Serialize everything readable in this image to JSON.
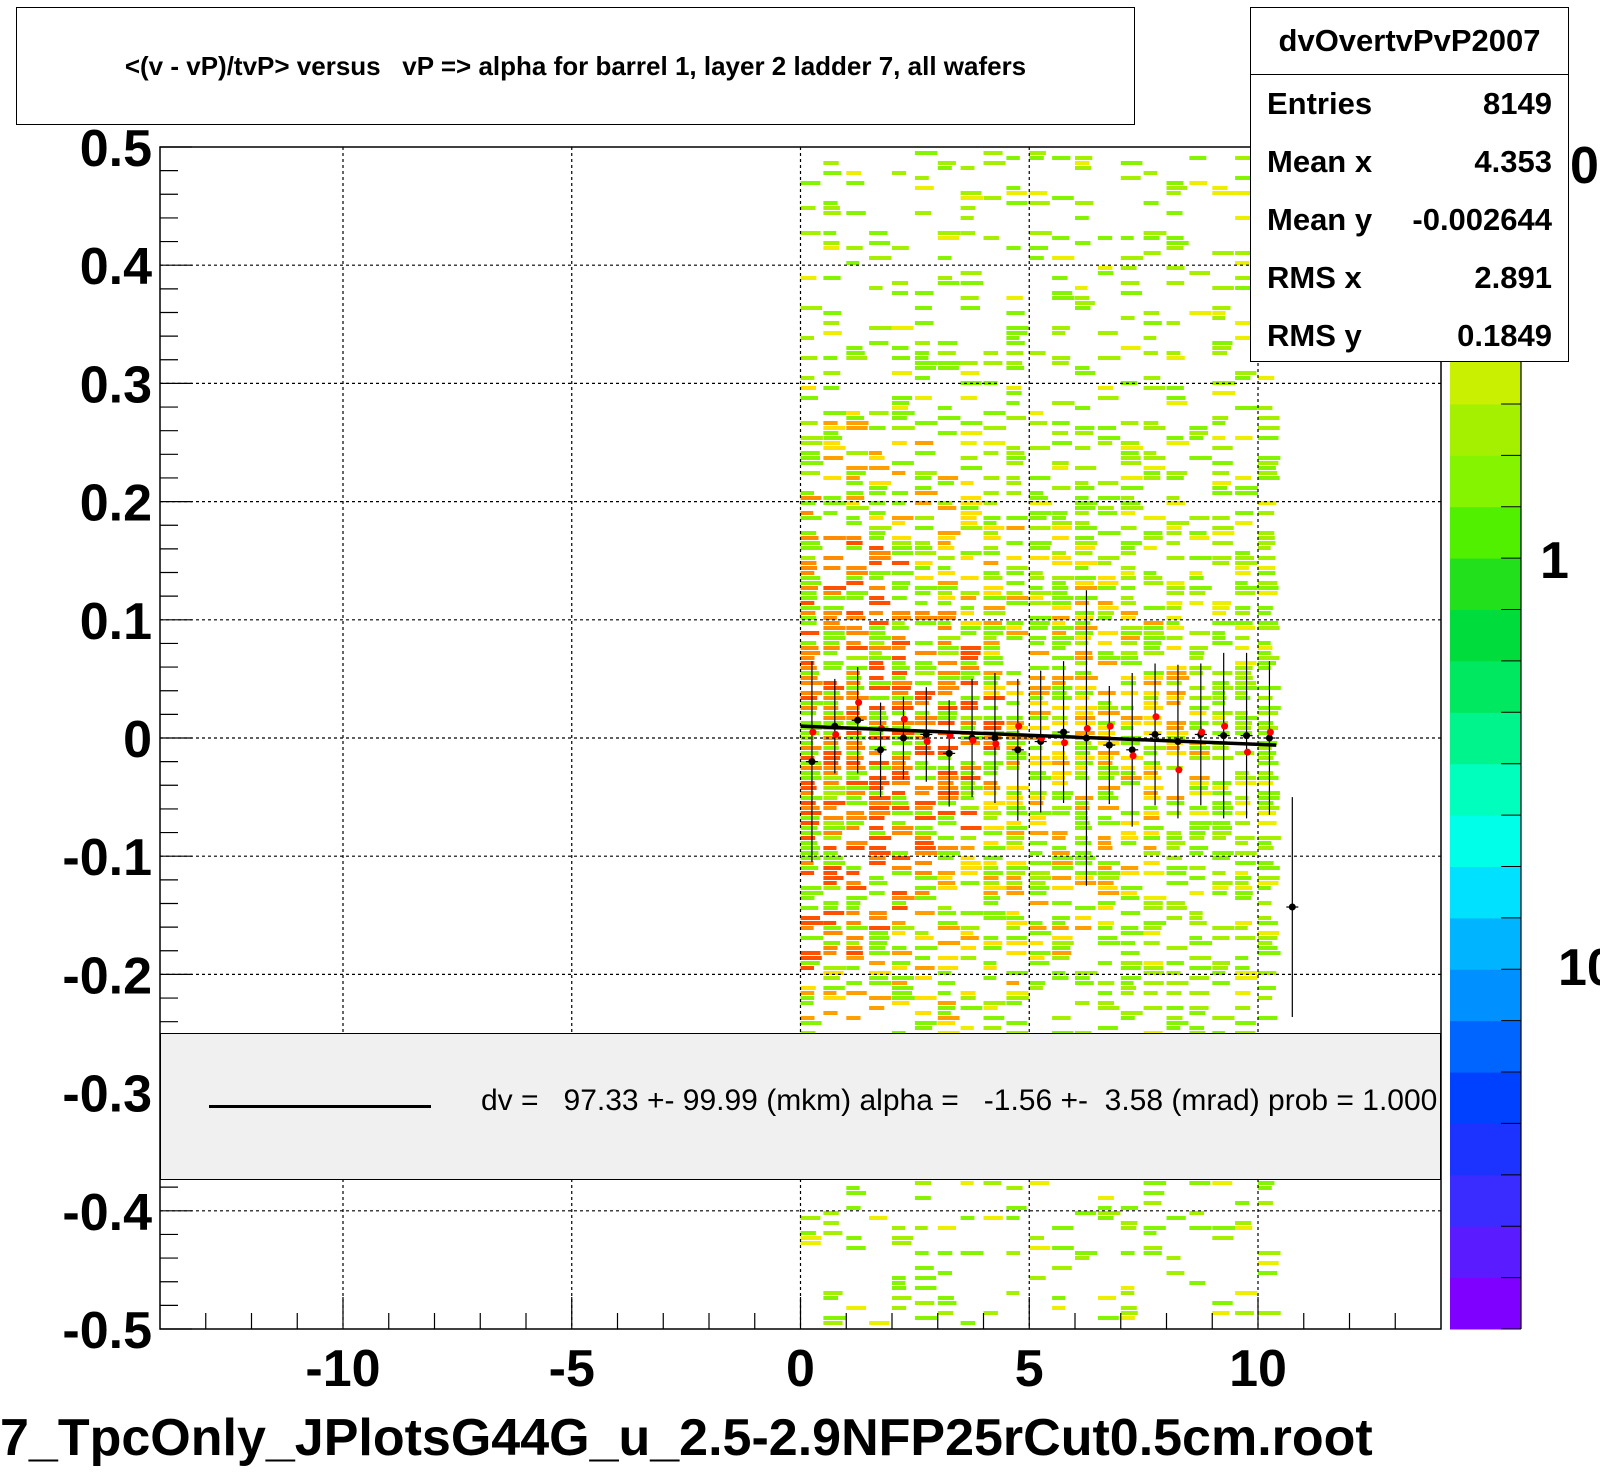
{
  "header": {
    "title": "<(v - vP)/tvP> versus   vP => alpha for barrel 1, layer 2 ladder 7, all wafers"
  },
  "stats": {
    "name": "dvOvertvPvP2007",
    "rows": [
      {
        "label": "Entries",
        "value": "8149"
      },
      {
        "label": "Mean x",
        "value": "4.353"
      },
      {
        "label": "Mean y",
        "value": "-0.002644"
      },
      {
        "label": "RMS x",
        "value": "2.891"
      },
      {
        "label": "RMS y",
        "value": "0.1849"
      }
    ]
  },
  "fit_legend": {
    "text": "dv =   97.33 +- 99.99 (mkm) alpha =   -1.56 +-  3.58 (mrad) prob = 1.000"
  },
  "footer": {
    "filename": "7_TpcOnly_JPlotsG44G_u_2.5-2.9NFP25rCut0.5cm.root"
  },
  "colors": {
    "fit_line": "#000000",
    "points_black": "#000000",
    "points_red": "#ff0000",
    "legend_bg": "#f0f0f0",
    "palette": [
      "#7f00ff",
      "#5a1cff",
      "#3a2cff",
      "#1c32ff",
      "#0040ff",
      "#0064ff",
      "#0090ff",
      "#00b4ff",
      "#00e0ff",
      "#00ffe8",
      "#00ffbc",
      "#00f48c",
      "#00e860",
      "#00dc3c",
      "#22e01c",
      "#50f000",
      "#84f400",
      "#a4f000",
      "#c8f000",
      "#ecf000",
      "#ffe000",
      "#ffa000",
      "#ff6000"
    ]
  },
  "chart_data": {
    "type": "heatmap",
    "xlim": [
      -14,
      14
    ],
    "ylim": [
      -0.5,
      0.5
    ],
    "x_ticks": [
      -10,
      -5,
      0,
      5,
      10
    ],
    "y_ticks": [
      0.5,
      0.4,
      0.3,
      0.2,
      0.1,
      0,
      -0.1,
      -0.2,
      -0.3,
      -0.4,
      -0.5
    ],
    "x_ticks_labels": [
      "-10",
      "-5",
      "0",
      "5",
      "10"
    ],
    "y_ticks_labels": [
      "0.5",
      "0.4",
      "0.3",
      "0.2",
      "0.1",
      "0",
      "-0.1",
      "-0.2",
      "-0.3",
      "-0.4",
      "-0.5"
    ],
    "grid": true,
    "heatmap_x_range": [
      0,
      10.5
    ],
    "z_scale": "log",
    "z_tick_labels": [
      "10",
      "1",
      "0"
    ],
    "fit_line": {
      "x": [
        0,
        10.4
      ],
      "y": [
        0.01,
        -0.006
      ]
    },
    "profile_black": {
      "x": [
        0.25,
        0.75,
        1.25,
        1.75,
        2.25,
        2.75,
        3.25,
        3.75,
        4.25,
        4.75,
        5.25,
        5.75,
        6.25,
        6.75,
        7.25,
        7.75,
        8.25,
        8.75,
        9.25,
        9.75,
        10.25,
        10.75
      ],
      "y": [
        -0.02,
        0.01,
        0.015,
        -0.01,
        0.0,
        0.003,
        -0.013,
        0.0,
        0.0,
        -0.01,
        -0.003,
        0.005,
        0.0,
        -0.006,
        -0.01,
        0.003,
        -0.003,
        0.003,
        0.002,
        0.002,
        0.0,
        -0.143
      ],
      "err": [
        0.085,
        0.04,
        0.045,
        0.04,
        0.035,
        0.04,
        0.045,
        0.05,
        0.055,
        0.06,
        0.06,
        0.06,
        0.125,
        0.05,
        0.065,
        0.06,
        0.065,
        0.06,
        0.07,
        0.07,
        0.065,
        0.093
      ]
    },
    "profile_red": {
      "x": [
        0.25,
        0.75,
        1.25,
        1.75,
        2.25,
        2.75,
        3.25,
        3.75,
        4.25,
        4.75,
        5.25,
        5.75,
        6.25,
        6.75,
        7.25,
        7.75,
        8.25,
        8.75,
        9.25,
        9.75,
        10.25
      ],
      "y": [
        0.005,
        0.003,
        0.03,
        0.008,
        0.016,
        -0.003,
        0.002,
        -0.002,
        -0.005,
        0.01,
        0.0,
        -0.004,
        0.008,
        0.01,
        -0.015,
        0.018,
        -0.027,
        0.005,
        0.01,
        -0.012,
        0.005
      ]
    },
    "series": [
      {
        "name": "dv =   97.33 +- 99.99 (mkm) alpha =   -1.56 +-  3.58 (mrad) prob = 1.000"
      }
    ]
  }
}
